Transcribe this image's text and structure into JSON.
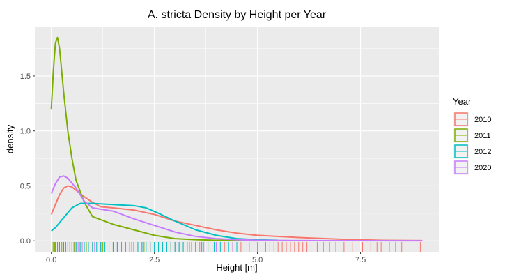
{
  "chart_data": {
    "type": "line",
    "title": "A. stricta Density by Height per Year",
    "xlabel": "Height [m]",
    "ylabel": "density",
    "xlim": [
      -0.4,
      9.4
    ],
    "ylim": [
      -0.1,
      1.95
    ],
    "x_ticks": [
      0,
      2.5,
      5,
      7.5
    ],
    "x_tick_labels": [
      "0.0",
      "2.5",
      "5.0",
      "7.5"
    ],
    "y_ticks": [
      0,
      0.5,
      1,
      1.5
    ],
    "y_tick_labels": [
      "0.0",
      "0.5",
      "1.0",
      "1.5"
    ],
    "grid": true,
    "legend": {
      "title": "Year",
      "position": "right"
    },
    "series": [
      {
        "name": "2010",
        "color": "#F8766D",
        "points": [
          [
            0,
            0.24
          ],
          [
            0.1,
            0.33
          ],
          [
            0.2,
            0.42
          ],
          [
            0.3,
            0.48
          ],
          [
            0.4,
            0.5
          ],
          [
            0.5,
            0.49
          ],
          [
            0.6,
            0.46
          ],
          [
            0.8,
            0.4
          ],
          [
            1.0,
            0.35
          ],
          [
            1.2,
            0.31
          ],
          [
            1.5,
            0.3
          ],
          [
            2.0,
            0.28
          ],
          [
            2.5,
            0.24
          ],
          [
            3.0,
            0.18
          ],
          [
            3.5,
            0.14
          ],
          [
            4.0,
            0.1
          ],
          [
            4.5,
            0.07
          ],
          [
            5.0,
            0.05
          ],
          [
            6.0,
            0.03
          ],
          [
            7.0,
            0.015
          ],
          [
            7.5,
            0.01
          ],
          [
            8.0,
            0.005
          ],
          [
            9.0,
            0.002
          ]
        ]
      },
      {
        "name": "2011",
        "color": "#7CAE00",
        "points": [
          [
            0,
            1.2
          ],
          [
            0.05,
            1.55
          ],
          [
            0.1,
            1.8
          ],
          [
            0.15,
            1.85
          ],
          [
            0.2,
            1.75
          ],
          [
            0.3,
            1.35
          ],
          [
            0.4,
            1.0
          ],
          [
            0.5,
            0.75
          ],
          [
            0.6,
            0.55
          ],
          [
            0.8,
            0.35
          ],
          [
            1.0,
            0.22
          ],
          [
            1.5,
            0.15
          ],
          [
            2.0,
            0.1
          ],
          [
            2.5,
            0.05
          ],
          [
            3.0,
            0.02
          ],
          [
            3.5,
            0.01
          ],
          [
            4.0,
            0.005
          ],
          [
            4.5,
            0.003
          ],
          [
            5.0,
            0.001
          ]
        ]
      },
      {
        "name": "2012",
        "color": "#00BFC4",
        "points": [
          [
            0,
            0.09
          ],
          [
            0.1,
            0.12
          ],
          [
            0.3,
            0.21
          ],
          [
            0.5,
            0.3
          ],
          [
            0.7,
            0.34
          ],
          [
            1.0,
            0.34
          ],
          [
            1.5,
            0.33
          ],
          [
            2.0,
            0.32
          ],
          [
            2.3,
            0.3
          ],
          [
            2.6,
            0.25
          ],
          [
            3.0,
            0.18
          ],
          [
            3.5,
            0.1
          ],
          [
            4.0,
            0.05
          ],
          [
            4.5,
            0.02
          ],
          [
            5.0,
            0.01
          ],
          [
            5.5,
            0.005
          ]
        ]
      },
      {
        "name": "2020",
        "color": "#C77CFF",
        "points": [
          [
            0,
            0.43
          ],
          [
            0.1,
            0.52
          ],
          [
            0.2,
            0.58
          ],
          [
            0.3,
            0.59
          ],
          [
            0.4,
            0.57
          ],
          [
            0.6,
            0.48
          ],
          [
            0.8,
            0.36
          ],
          [
            1.0,
            0.3
          ],
          [
            1.5,
            0.27
          ],
          [
            2.0,
            0.2
          ],
          [
            2.5,
            0.14
          ],
          [
            3.0,
            0.08
          ],
          [
            3.5,
            0.04
          ],
          [
            4.0,
            0.02
          ],
          [
            4.5,
            0.01
          ],
          [
            5.0,
            0.005
          ],
          [
            6.0,
            0.002
          ],
          [
            9.0,
            0.001
          ]
        ]
      }
    ],
    "rug": {
      "2010": [
        0.05,
        0.3,
        0.6,
        0.9,
        1.2,
        1.5,
        1.8,
        2.1,
        2.4,
        2.7,
        3.0,
        3.3,
        3.6,
        3.9,
        4.2,
        4.4,
        4.6,
        4.8,
        5.0,
        5.2,
        5.4,
        5.5,
        5.6,
        5.7,
        5.8,
        5.9,
        6.0,
        6.1,
        6.2,
        6.3,
        6.45,
        6.6,
        6.75,
        6.9,
        7.1,
        7.3,
        7.55,
        7.75,
        7.9,
        8.0,
        8.2,
        8.35,
        8.5,
        8.95
      ],
      "2011": [
        0.02,
        0.08,
        0.15,
        0.2,
        0.28,
        0.35,
        0.45,
        0.55,
        0.7,
        0.85,
        1.0,
        1.25,
        1.5,
        1.7,
        1.95,
        2.25,
        2.6,
        2.9,
        3.2,
        3.5,
        3.8
      ],
      "2012": [
        0.1,
        0.2,
        0.3,
        0.4,
        0.5,
        0.6,
        0.7,
        0.8,
        0.9,
        1.0,
        1.1,
        1.2,
        1.3,
        1.4,
        1.5,
        1.6,
        1.7,
        1.8,
        1.9,
        2.0,
        2.1,
        2.2,
        2.3,
        2.4,
        2.5,
        2.6,
        2.7,
        2.8,
        2.9,
        3.0,
        3.1,
        3.2,
        3.35,
        3.5,
        3.65,
        3.8,
        3.95,
        4.1,
        4.3,
        4.5
      ],
      "2020": [
        0.05,
        0.15,
        0.25,
        0.35,
        0.45,
        0.55,
        0.65,
        0.75,
        0.9,
        1.05,
        1.2,
        1.4,
        1.6,
        1.8,
        2.0,
        2.2,
        2.5,
        2.8,
        3.1,
        3.4,
        3.7,
        4.0,
        4.4,
        4.8,
        5.3
      ]
    }
  }
}
